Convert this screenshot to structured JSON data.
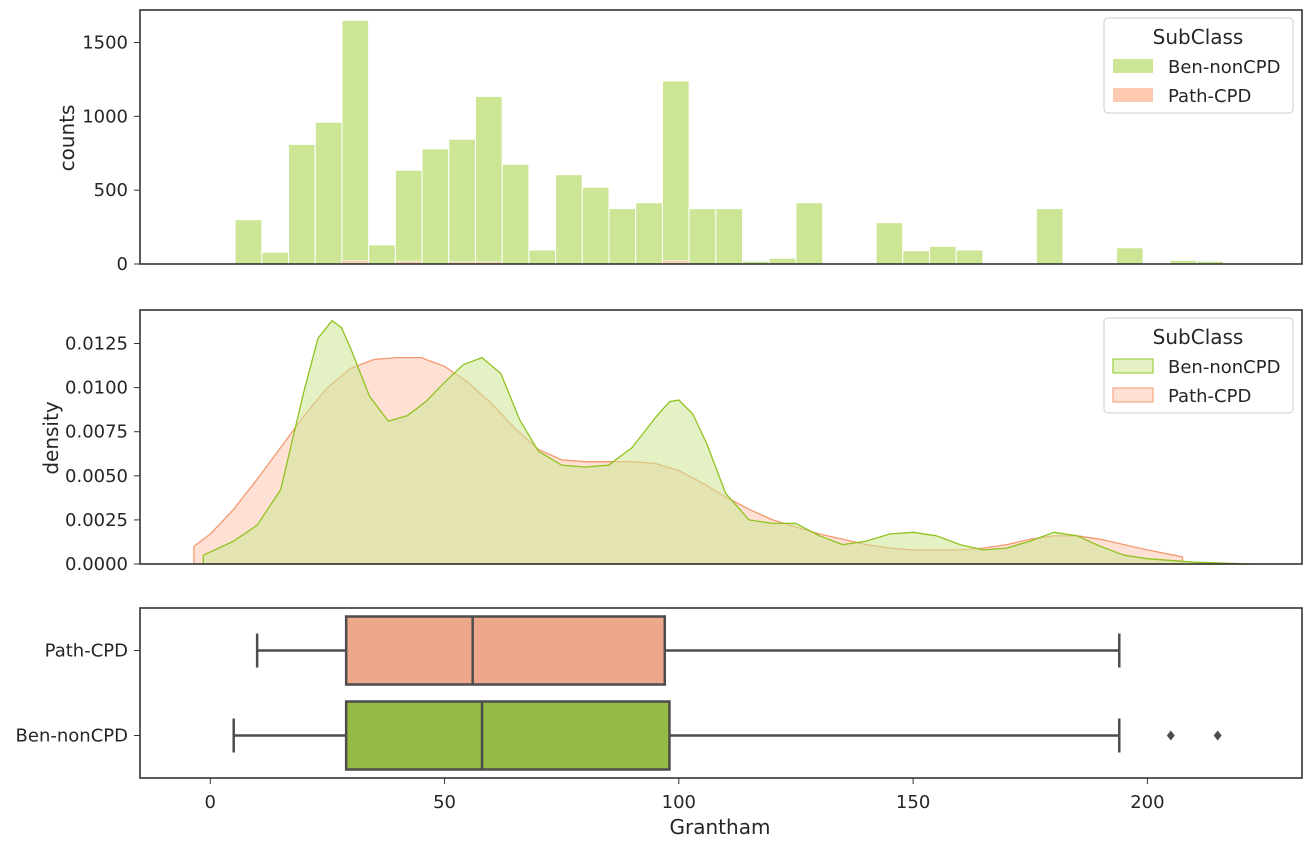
{
  "colors": {
    "ben_fill": "#cde696",
    "ben_line": "#8fc31f",
    "ben_box": "#96bb45",
    "path_fill": "#fdc9b0",
    "path_line": "#f4996f",
    "path_box": "#eda88b",
    "axis": "#333333",
    "box_line": "#4d4d4d"
  },
  "chart_data": [
    {
      "type": "histogram",
      "ylabel": "counts",
      "xlabel": "",
      "ylim": [
        0,
        1720
      ],
      "yticks": [
        0,
        500,
        1000,
        1500
      ],
      "bin_width": 5.7,
      "series": [
        {
          "name": "Ben-nonCPD",
          "bins": [
            {
              "x0": 5.3,
              "count": 300
            },
            {
              "x0": 11.0,
              "count": 80
            },
            {
              "x0": 16.7,
              "count": 810
            },
            {
              "x0": 22.4,
              "count": 960
            },
            {
              "x0": 28.1,
              "count": 1650
            },
            {
              "x0": 33.8,
              "count": 130
            },
            {
              "x0": 39.5,
              "count": 635
            },
            {
              "x0": 45.2,
              "count": 780
            },
            {
              "x0": 50.9,
              "count": 845
            },
            {
              "x0": 56.6,
              "count": 1135
            },
            {
              "x0": 62.3,
              "count": 675
            },
            {
              "x0": 68.0,
              "count": 95
            },
            {
              "x0": 73.7,
              "count": 605
            },
            {
              "x0": 79.4,
              "count": 520
            },
            {
              "x0": 85.1,
              "count": 375
            },
            {
              "x0": 90.8,
              "count": 415
            },
            {
              "x0": 96.5,
              "count": 1240
            },
            {
              "x0": 102.2,
              "count": 375
            },
            {
              "x0": 107.9,
              "count": 375
            },
            {
              "x0": 113.6,
              "count": 20
            },
            {
              "x0": 119.3,
              "count": 40
            },
            {
              "x0": 125.0,
              "count": 415
            },
            {
              "x0": 142.1,
              "count": 280
            },
            {
              "x0": 147.8,
              "count": 90
            },
            {
              "x0": 153.5,
              "count": 120
            },
            {
              "x0": 159.2,
              "count": 95
            },
            {
              "x0": 176.3,
              "count": 375
            },
            {
              "x0": 193.4,
              "count": 110
            },
            {
              "x0": 204.8,
              "count": 25
            },
            {
              "x0": 210.5,
              "count": 20
            }
          ]
        },
        {
          "name": "Path-CPD",
          "bins": [
            {
              "x0": 28.1,
              "count": 25
            },
            {
              "x0": 39.5,
              "count": 20
            },
            {
              "x0": 50.9,
              "count": 15
            },
            {
              "x0": 56.6,
              "count": 15
            },
            {
              "x0": 96.5,
              "count": 25
            }
          ]
        }
      ],
      "legend": {
        "title": "SubClass",
        "position": "upper right",
        "entries": [
          "Ben-nonCPD",
          "Path-CPD"
        ]
      }
    },
    {
      "type": "area",
      "ylabel": "density",
      "xlabel": "",
      "ylim": [
        0,
        0.0144
      ],
      "yticks": [
        "0.0000",
        "0.0025",
        "0.0050",
        "0.0075",
        "0.0100",
        "0.0125"
      ],
      "series": [
        {
          "name": "Ben-nonCPD",
          "x": [
            -1.5,
            5,
            10,
            15,
            20,
            23,
            26,
            28,
            30,
            34,
            38,
            42,
            46,
            50,
            54,
            58,
            62,
            66,
            70,
            75,
            80,
            85,
            90,
            95,
            98,
            100,
            103,
            106,
            110,
            115,
            120,
            125,
            130,
            135,
            140,
            145,
            150,
            155,
            160,
            165,
            170,
            175,
            180,
            185,
            190,
            195,
            200,
            210,
            222
          ],
          "y": [
            0.0005,
            0.0013,
            0.0022,
            0.0042,
            0.0098,
            0.0128,
            0.0138,
            0.0134,
            0.0122,
            0.0095,
            0.0081,
            0.0084,
            0.0092,
            0.0103,
            0.0113,
            0.0117,
            0.0108,
            0.0082,
            0.0064,
            0.0056,
            0.0055,
            0.0056,
            0.0066,
            0.0083,
            0.0092,
            0.0093,
            0.0085,
            0.0068,
            0.004,
            0.0025,
            0.0023,
            0.0023,
            0.0016,
            0.0011,
            0.0013,
            0.0017,
            0.0018,
            0.0016,
            0.0011,
            0.0008,
            0.0009,
            0.0013,
            0.0018,
            0.0016,
            0.001,
            0.0005,
            0.0003,
            0.0001,
            0.0
          ]
        },
        {
          "name": "Path-CPD",
          "x": [
            -3.5,
            0,
            5,
            10,
            15,
            20,
            25,
            30,
            35,
            40,
            45,
            50,
            55,
            60,
            65,
            70,
            75,
            80,
            85,
            90,
            95,
            100,
            105,
            110,
            115,
            120,
            125,
            130,
            135,
            140,
            145,
            150,
            155,
            160,
            165,
            170,
            175,
            180,
            185,
            190,
            195,
            200,
            207.5
          ],
          "y": [
            0.001,
            0.0017,
            0.0031,
            0.0048,
            0.0066,
            0.0084,
            0.01,
            0.0111,
            0.0116,
            0.0117,
            0.0117,
            0.0112,
            0.0103,
            0.0091,
            0.0077,
            0.0065,
            0.0059,
            0.0058,
            0.0058,
            0.0058,
            0.0057,
            0.0053,
            0.0046,
            0.0038,
            0.0031,
            0.0025,
            0.0021,
            0.0017,
            0.0014,
            0.0011,
            0.0009,
            0.0008,
            0.0008,
            0.0008,
            0.0009,
            0.0011,
            0.0014,
            0.0016,
            0.0016,
            0.0014,
            0.0011,
            0.0008,
            0.0004
          ]
        }
      ],
      "legend": {
        "title": "SubClass",
        "position": "upper right",
        "entries": [
          "Ben-nonCPD",
          "Path-CPD"
        ]
      }
    },
    {
      "type": "box",
      "xlabel": "Grantham",
      "xlim": [
        -15,
        233
      ],
      "xticks": [
        0,
        50,
        100,
        150,
        200
      ],
      "categories": [
        "Path-CPD",
        "Ben-nonCPD"
      ],
      "boxes": [
        {
          "name": "Path-CPD",
          "whisker_low": 10,
          "q1": 29,
          "median": 56,
          "q3": 97,
          "whisker_high": 194,
          "outliers": []
        },
        {
          "name": "Ben-nonCPD",
          "whisker_low": 5,
          "q1": 29,
          "median": 58,
          "q3": 98,
          "whisker_high": 194,
          "outliers": [
            205,
            215
          ]
        }
      ]
    }
  ]
}
